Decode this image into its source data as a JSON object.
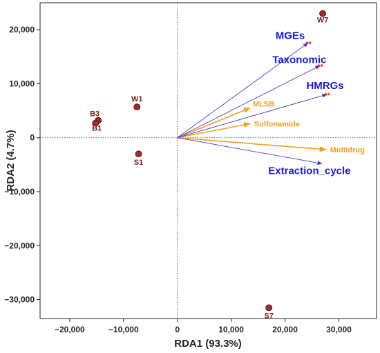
{
  "chart_data": {
    "type": "scatter",
    "title": "",
    "xlabel": "RDA1 (93.3%)",
    "ylabel": "RDA2 (4.7%)",
    "xlim": [
      -25500,
      37000
    ],
    "ylim": [
      -33500,
      25000
    ],
    "xticks": [
      -20000,
      -10000,
      0,
      10000,
      20000,
      30000
    ],
    "xtick_labels": [
      "−20,000",
      "−10,000",
      "0",
      "10,000",
      "20,000",
      "30,000"
    ],
    "yticks": [
      -30000,
      -20000,
      -10000,
      0,
      10000,
      20000
    ],
    "ytick_labels": [
      "−30,000",
      "−20,000",
      "−10,000",
      "0",
      "10,000",
      "20,000"
    ],
    "grid": false,
    "reference_lines": "dotted lines at x = 0 and y = 0",
    "sites": [
      {
        "label": "W7",
        "x": 27000,
        "y": 23000
      },
      {
        "label": "W1",
        "x": -7500,
        "y": 5700
      },
      {
        "label": "B3",
        "x": -14700,
        "y": 3200
      },
      {
        "label": "B1",
        "x": -15200,
        "y": 2700
      },
      {
        "label": "S1",
        "x": -7200,
        "y": -3000
      },
      {
        "label": "S7",
        "x": 17000,
        "y": -31500
      }
    ],
    "env_vectors": [
      {
        "label": "MGEs",
        "x": 24200,
        "y": 17500,
        "sig": "**"
      },
      {
        "label": "Taxonomic",
        "x": 26400,
        "y": 13300,
        "sig": "**"
      },
      {
        "label": "HMRGs",
        "x": 27700,
        "y": 8000,
        "sig": "**"
      },
      {
        "label": "Extraction_cycle",
        "x": 26800,
        "y": -4800,
        "sig": ""
      }
    ],
    "arg_vectors": [
      {
        "label": "MLSB",
        "x": 13500,
        "y": 5500
      },
      {
        "label": "Sulfonamide",
        "x": 13500,
        "y": 2600
      },
      {
        "label": "Multidrug",
        "x": 27600,
        "y": -2200
      }
    ],
    "colors": {
      "site_point": "#a52a2a",
      "site_label": "#7a1a1a",
      "env_vector": "#3b3bdc",
      "env_label": "#1a1ad6",
      "arg_vector": "#f0a020",
      "significance": "#e02020"
    }
  }
}
